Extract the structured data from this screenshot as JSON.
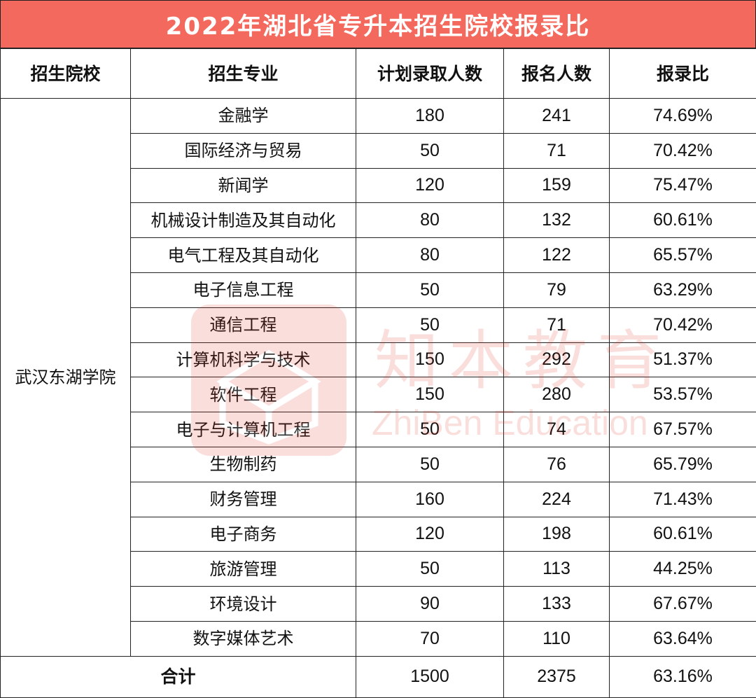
{
  "title": "2022年湖北省专升本招生院校报录比",
  "headers": [
    "招生院校",
    "招生专业",
    "计划录取人数",
    "报名人数",
    "报录比"
  ],
  "school": "武汉东湖学院",
  "rows": [
    {
      "major": "金融学",
      "plan": "180",
      "applicants": "241",
      "ratio": "74.69%"
    },
    {
      "major": "国际经济与贸易",
      "plan": "50",
      "applicants": "71",
      "ratio": "70.42%"
    },
    {
      "major": "新闻学",
      "plan": "120",
      "applicants": "159",
      "ratio": "75.47%"
    },
    {
      "major": "机械设计制造及其自动化",
      "plan": "80",
      "applicants": "132",
      "ratio": "60.61%"
    },
    {
      "major": "电气工程及其自动化",
      "plan": "80",
      "applicants": "122",
      "ratio": "65.57%"
    },
    {
      "major": "电子信息工程",
      "plan": "50",
      "applicants": "79",
      "ratio": "63.29%"
    },
    {
      "major": "通信工程",
      "plan": "50",
      "applicants": "71",
      "ratio": "70.42%"
    },
    {
      "major": "计算机科学与技术",
      "plan": "150",
      "applicants": "292",
      "ratio": "51.37%"
    },
    {
      "major": "软件工程",
      "plan": "150",
      "applicants": "280",
      "ratio": "53.57%"
    },
    {
      "major": "电子与计算机工程",
      "plan": "50",
      "applicants": "74",
      "ratio": "67.57%"
    },
    {
      "major": "生物制药",
      "plan": "50",
      "applicants": "76",
      "ratio": "65.79%"
    },
    {
      "major": "财务管理",
      "plan": "160",
      "applicants": "224",
      "ratio": "71.43%"
    },
    {
      "major": "电子商务",
      "plan": "120",
      "applicants": "198",
      "ratio": "60.61%"
    },
    {
      "major": "旅游管理",
      "plan": "50",
      "applicants": "113",
      "ratio": "44.25%"
    },
    {
      "major": "环境设计",
      "plan": "90",
      "applicants": "133",
      "ratio": "67.67%"
    },
    {
      "major": "数字媒体艺术",
      "plan": "70",
      "applicants": "110",
      "ratio": "63.64%"
    }
  ],
  "total": {
    "label": "合计",
    "plan": "1500",
    "applicants": "2375",
    "ratio": "63.16%"
  },
  "watermark": {
    "cn": "知本教育",
    "en": "ZhiBen Education"
  },
  "colors": {
    "title_bg": "#f4695d",
    "title_text": "#ffffff",
    "watermark": "#e23a2b"
  }
}
